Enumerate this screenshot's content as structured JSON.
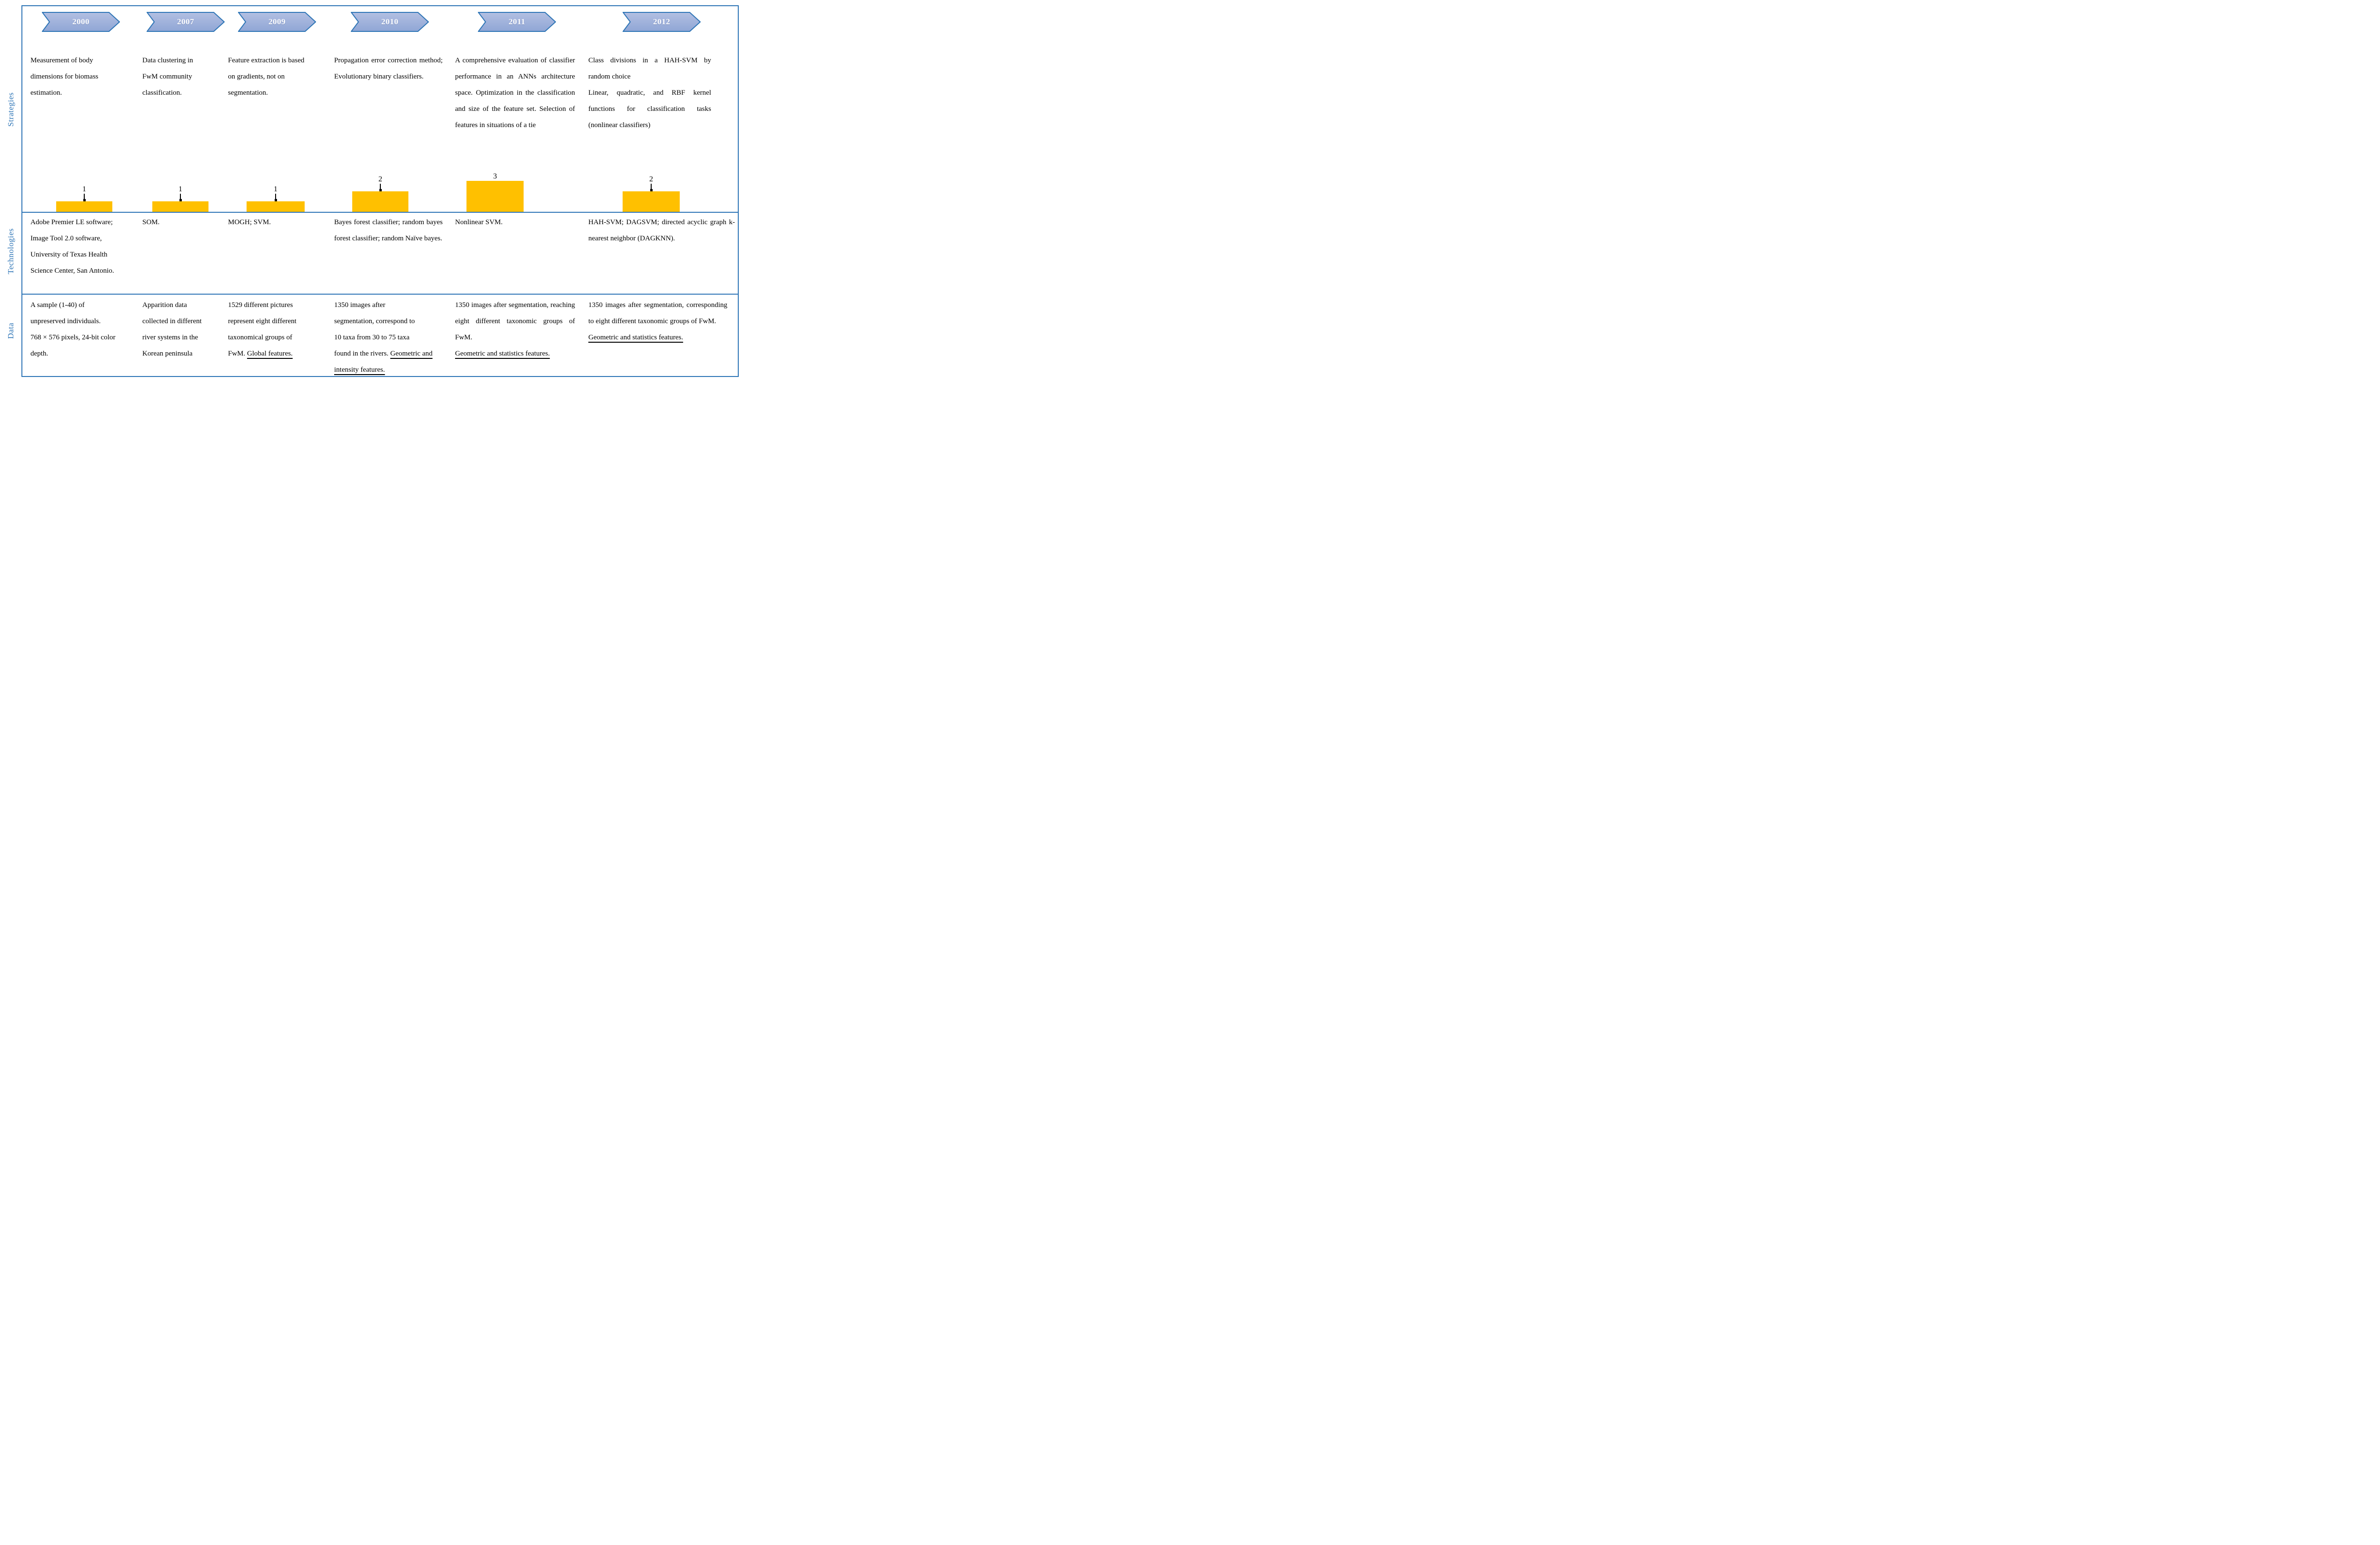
{
  "colors": {
    "accent_blue": "#2E75B6",
    "arrow_fill_top": "#B3BFE2",
    "arrow_fill_bottom": "#8FA6D5",
    "bar_yellow": "#FFC000",
    "year_text": "#FFFFFF"
  },
  "row_labels": [
    "Strategies",
    "Technologies",
    "Data"
  ],
  "years": [
    "2000",
    "2007",
    "2009",
    "2010",
    "2011",
    "2012"
  ],
  "chart_data": {
    "type": "bar",
    "categories": [
      "2000",
      "2007",
      "2009",
      "2010",
      "2011",
      "2012"
    ],
    "values": [
      1,
      1,
      1,
      2,
      3,
      2
    ],
    "title": "",
    "xlabel": "",
    "ylabel": "",
    "ylim": [
      0,
      3
    ],
    "bar_color": "#FFC000",
    "grid": false,
    "legend": false
  },
  "strategies": {
    "cells": [
      {
        "text": "Measurement of body\ndimensions for biomass\nestimation."
      },
      {
        "text": "Data clustering in\nFwM community\nclassification."
      },
      {
        "text": "Feature extraction is based\non gradients, not on\nsegmentation."
      },
      {
        "text": "Propagation error correction method; Evolutionary binary classifiers."
      },
      {
        "text": "A comprehensive evaluation of classifier performance in an ANNs architecture space. Optimization in the classification and size of the feature set. Selection of features in situations of a tie"
      },
      {
        "text": "Class divisions in a HAH-SVM by random choice\nLinear, quadratic, and RBF kernel functions for classification tasks (nonlinear classifiers)"
      }
    ]
  },
  "technologies": {
    "cells": [
      {
        "text": "Adobe Premier LE software;\nImage Tool 2.0 software,\nUniversity of Texas Health\nScience Center, San Antonio."
      },
      {
        "text": "SOM."
      },
      {
        "text": "MOGH; SVM."
      },
      {
        "text": "Bayes forest classifier; random bayes forest classifier; random Naïve bayes."
      },
      {
        "text": "Nonlinear SVM."
      },
      {
        "text": "HAH-SVM; DAGSVM; directed acyclic graph k-nearest neighbor (DAGKNN)."
      }
    ]
  },
  "data_section": {
    "cells": [
      {
        "text": "A sample (1-40) of\nunpreserved individuals.\n768 × 576 pixels, 24-bit color\ndepth."
      },
      {
        "text": "Apparition data\ncollected in different\nriver systems in the\nKorean peninsula"
      },
      {
        "text": "1529 different pictures\nrepresent eight different\ntaxonomical groups of\nFwM. ",
        "underline": "Global features."
      },
      {
        "text": "1350 images after\nsegmentation, correspond to\n10 taxa from 30 to 75 taxa\nfound in the rivers. ",
        "underline": "Geometric and intensity features."
      },
      {
        "text": "1350 images after segmentation, reaching eight different taxonomic groups of FwM.\n",
        "underline": "Geometric and statistics features."
      },
      {
        "text": "1350 images after segmentation, corresponding to eight different taxonomic groups of FwM.\n",
        "underline": "Geometric and statistics features."
      }
    ]
  }
}
